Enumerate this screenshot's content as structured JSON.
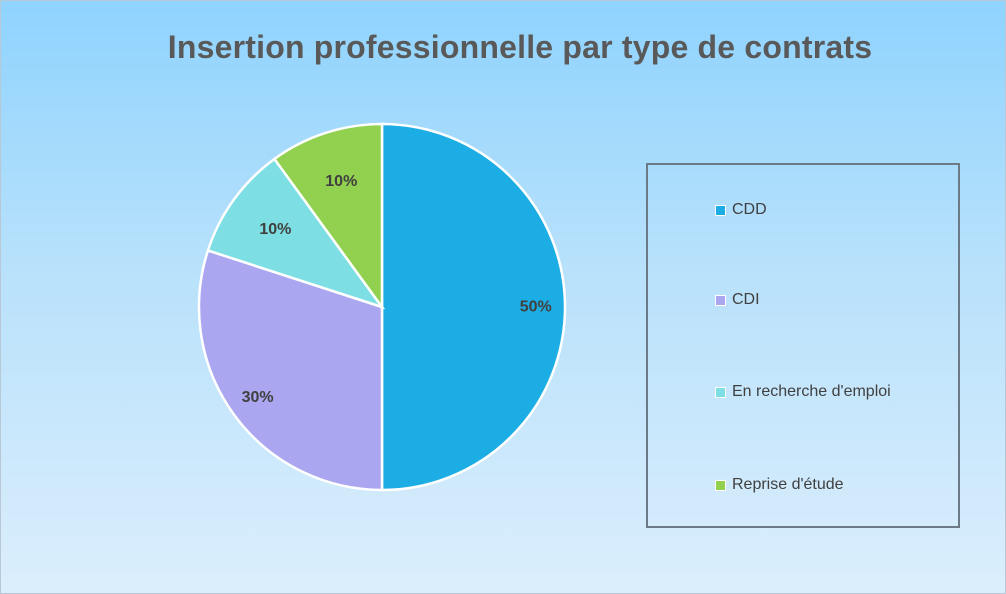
{
  "chart_data": {
    "type": "pie",
    "title": "Insertion professionnelle par type de contrats",
    "categories": [
      "CDD",
      "CDI",
      "En recherche d'emploi",
      "Reprise d'étude"
    ],
    "values": [
      50,
      30,
      10,
      10
    ],
    "data_labels": [
      "50%",
      "30%",
      "10%",
      "10%"
    ],
    "colors": [
      "#1cade4",
      "#aba6f0",
      "#7ddfe3",
      "#92d050"
    ],
    "legend_position": "right"
  }
}
